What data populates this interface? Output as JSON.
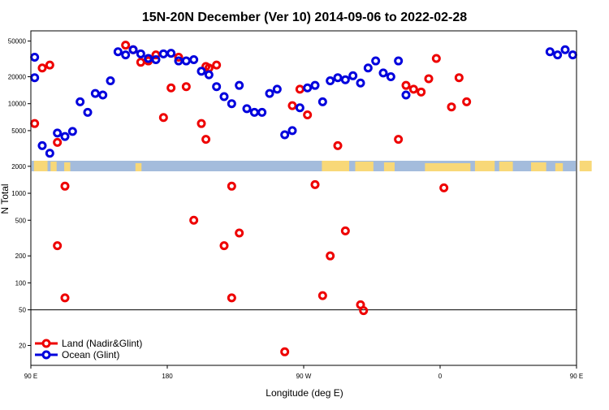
{
  "chart_data": {
    "type": "scatter",
    "title": "15N-20N December (Ver 10)   2014-09-06 to 2022-02-28",
    "xlabel": "Longitude (deg E)",
    "ylabel": "N Total",
    "y_scale": "log",
    "xlim": [
      90,
      450
    ],
    "ylim": [
      12,
      65000
    ],
    "y_ticks": [
      {
        "value": 20,
        "label": "20"
      },
      {
        "value": 50,
        "label": "50"
      },
      {
        "value": 100,
        "label": "100"
      },
      {
        "value": 200,
        "label": "200"
      },
      {
        "value": 500,
        "label": "500"
      },
      {
        "value": 1000,
        "label": "1000"
      },
      {
        "value": 2000,
        "label": "2000"
      },
      {
        "value": 5000,
        "label": "5000"
      },
      {
        "value": 10000,
        "label": "10000"
      },
      {
        "value": 20000,
        "label": "20000"
      },
      {
        "value": 50000,
        "label": "50000"
      }
    ],
    "x_ticks": [
      {
        "value": 90,
        "label": "90 E"
      },
      {
        "value": 180,
        "label": "180"
      },
      {
        "value": 270,
        "label": "90 W"
      },
      {
        "value": 360,
        "label": "0"
      },
      {
        "value": 450,
        "label": "90 E"
      },
      {
        "value": 540,
        "label": "180"
      }
    ],
    "reference_line": 50,
    "legend_position": "bottom-left",
    "colors": {
      "land": "#ee0000",
      "ocean": "#0000dd",
      "map_water": "#a4bcdc",
      "map_land": "#f8d878"
    },
    "series": [
      {
        "name": "Land (Nadir&Glint)",
        "key": "land",
        "points": [
          [
            92.5,
            6000
          ],
          [
            97.5,
            25000
          ],
          [
            102.5,
            27000
          ],
          [
            107.5,
            260
          ],
          [
            112.5,
            68
          ],
          [
            112.5,
            1200
          ],
          [
            152.5,
            45000
          ],
          [
            157.5,
            40000
          ],
          [
            162.5,
            29000
          ],
          [
            167.5,
            30000
          ],
          [
            172.5,
            35000
          ],
          [
            177.5,
            7000
          ],
          [
            182.5,
            15000
          ],
          [
            187.5,
            33000
          ],
          [
            192.5,
            15500
          ],
          [
            197.5,
            500
          ],
          [
            202.5,
            6000
          ],
          [
            207.5,
            25000
          ],
          [
            212.5,
            27000
          ],
          [
            217.5,
            260
          ],
          [
            222.5,
            68
          ],
          [
            222.5,
            1200
          ],
          [
            107.5,
            3700
          ],
          [
            205.5,
            26000
          ],
          [
            205.5,
            4000
          ],
          [
            227.5,
            360
          ],
          [
            257.5,
            17
          ],
          [
            262.5,
            9500
          ],
          [
            267.5,
            14500
          ],
          [
            272.5,
            7500
          ],
          [
            277.5,
            1250
          ],
          [
            282.5,
            72
          ],
          [
            287.5,
            200
          ],
          [
            292.5,
            3400
          ],
          [
            297.5,
            380
          ],
          [
            307.5,
            57
          ],
          [
            309.5,
            49
          ],
          [
            332.5,
            4000
          ],
          [
            337.5,
            16000
          ],
          [
            342.5,
            14500
          ],
          [
            347.5,
            13500
          ],
          [
            352.5,
            19000
          ],
          [
            357.5,
            32000
          ],
          [
            362.5,
            1150
          ],
          [
            367.5,
            9200
          ],
          [
            372.5,
            19500
          ],
          [
            377.5,
            10500
          ]
        ]
      },
      {
        "name": "Ocean (Glint)",
        "key": "ocean",
        "points": [
          [
            92.5,
            19500
          ],
          [
            97.5,
            3400
          ],
          [
            102.5,
            2800
          ],
          [
            107.5,
            4700
          ],
          [
            112.5,
            4300
          ],
          [
            117.5,
            4900
          ],
          [
            122.5,
            10500
          ],
          [
            127.5,
            8000
          ],
          [
            132.5,
            13000
          ],
          [
            137.5,
            12500
          ],
          [
            142.5,
            18000
          ],
          [
            147.5,
            38000
          ],
          [
            152.5,
            35000
          ],
          [
            157.5,
            40000
          ],
          [
            162.5,
            36000
          ],
          [
            167.5,
            32000
          ],
          [
            172.5,
            31000
          ],
          [
            177.5,
            36000
          ],
          [
            182.5,
            36500
          ],
          [
            187.5,
            30000
          ],
          [
            192.5,
            30000
          ],
          [
            197.5,
            31000
          ],
          [
            202.5,
            23000
          ],
          [
            207.5,
            21000
          ],
          [
            212.5,
            15500
          ],
          [
            217.5,
            12000
          ],
          [
            222.5,
            10000
          ],
          [
            227.5,
            16000
          ],
          [
            232.5,
            8800
          ],
          [
            237.5,
            8000
          ],
          [
            242.5,
            8000
          ],
          [
            247.5,
            13000
          ],
          [
            252.5,
            14500
          ],
          [
            257.5,
            4500
          ],
          [
            262.5,
            5000
          ],
          [
            267.5,
            9000
          ],
          [
            272.5,
            15000
          ],
          [
            277.5,
            16000
          ],
          [
            282.5,
            10500
          ],
          [
            287.5,
            18000
          ],
          [
            292.5,
            19500
          ],
          [
            297.5,
            18500
          ],
          [
            302.5,
            20500
          ],
          [
            307.5,
            17000
          ],
          [
            312.5,
            25000
          ],
          [
            317.5,
            30000
          ],
          [
            322.5,
            22000
          ],
          [
            327.5,
            20000
          ],
          [
            332.5,
            30000
          ],
          [
            337.5,
            12500
          ],
          [
            432.5,
            38000
          ],
          [
            437.5,
            35000
          ],
          [
            442.5,
            40000
          ],
          [
            447.5,
            35000
          ],
          [
            452.5,
            33000
          ]
        ]
      }
    ]
  }
}
